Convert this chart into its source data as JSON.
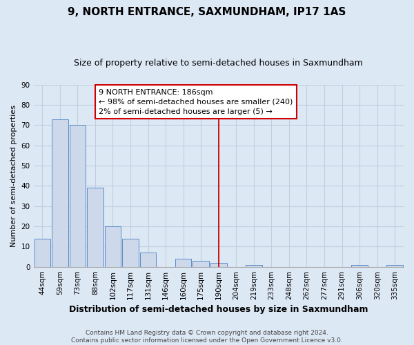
{
  "title": "9, NORTH ENTRANCE, SAXMUNDHAM, IP17 1AS",
  "subtitle": "Size of property relative to semi-detached houses in Saxmundham",
  "xlabel": "Distribution of semi-detached houses by size in Saxmundham",
  "ylabel": "Number of semi-detached properties",
  "categories": [
    "44sqm",
    "59sqm",
    "73sqm",
    "88sqm",
    "102sqm",
    "117sqm",
    "131sqm",
    "146sqm",
    "160sqm",
    "175sqm",
    "190sqm",
    "204sqm",
    "219sqm",
    "233sqm",
    "248sqm",
    "262sqm",
    "277sqm",
    "291sqm",
    "306sqm",
    "320sqm",
    "335sqm"
  ],
  "values": [
    14,
    73,
    70,
    39,
    20,
    14,
    7,
    0,
    4,
    3,
    2,
    0,
    1,
    0,
    0,
    0,
    0,
    0,
    1,
    0,
    1
  ],
  "bar_color": "#cdd9ea",
  "bar_edge_color": "#5b8cc8",
  "highlight_index": 10,
  "highlight_color": "#cc0000",
  "ylim": [
    0,
    90
  ],
  "yticks": [
    0,
    10,
    20,
    30,
    40,
    50,
    60,
    70,
    80,
    90
  ],
  "annotation_title": "9 NORTH ENTRANCE: 186sqm",
  "annotation_line1": "← 98% of semi-detached houses are smaller (240)",
  "annotation_line2": "2% of semi-detached houses are larger (5) →",
  "footer_line1": "Contains HM Land Registry data © Crown copyright and database right 2024.",
  "footer_line2": "Contains public sector information licensed under the Open Government Licence v3.0.",
  "background_color": "#dde8f5",
  "plot_bg_color": "#dde8f5",
  "grid_color": "#c0cfe0",
  "annotation_box_facecolor": "#ffffff",
  "annotation_box_edgecolor": "#cc0000",
  "title_fontsize": 11,
  "subtitle_fontsize": 9,
  "xlabel_fontsize": 9,
  "ylabel_fontsize": 8,
  "tick_fontsize": 7.5,
  "footer_fontsize": 6.5
}
